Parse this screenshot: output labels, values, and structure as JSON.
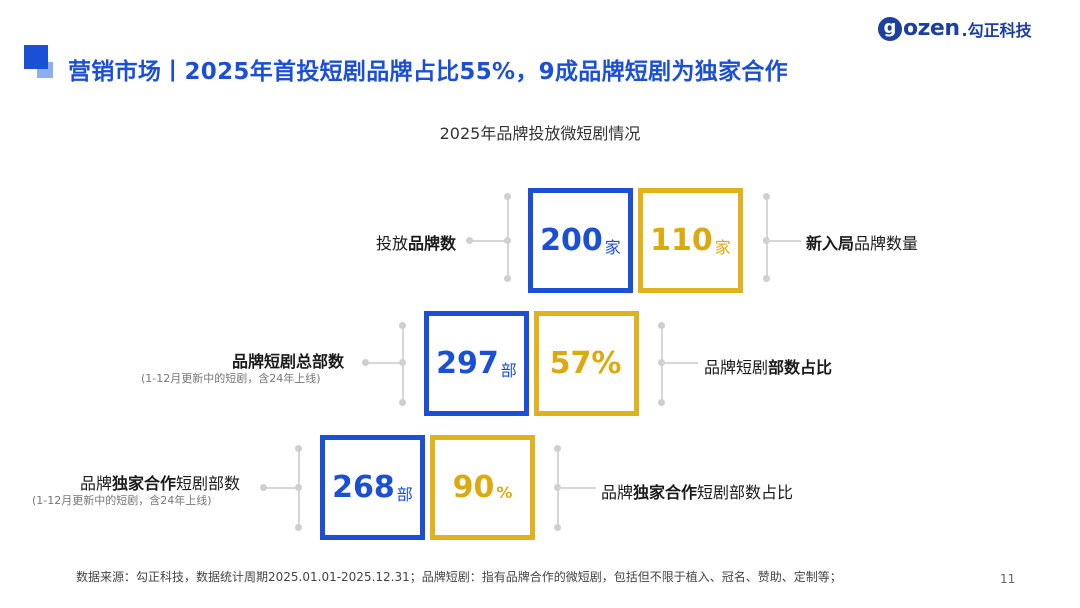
{
  "header": {
    "title": "营销市场丨2025年首投短剧品牌占比55%，9成品牌短剧为独家合作",
    "logo_text": "ozen",
    "logo_g": "g",
    "logo_cn": ".勾正科技"
  },
  "subtitle": "2025年品牌投放微短剧情况",
  "rows": [
    {
      "left_label_plain_before": "投放",
      "left_label_bold": "品牌数",
      "left_label_plain_after": "",
      "note": "",
      "blue_value": "200",
      "blue_unit": "家",
      "gold_value": "110",
      "gold_unit": "家",
      "right_label_bold_before": "新入局",
      "right_label_plain": "品牌数量",
      "right_label_bold_after": ""
    },
    {
      "left_label_plain_before": "",
      "left_label_bold": "品牌短剧总部数",
      "left_label_plain_after": "",
      "note": "(1-12月更新中的短剧，含24年上线)",
      "blue_value": "297",
      "blue_unit": "部",
      "gold_value": "57%",
      "gold_unit": "",
      "right_label_bold_before": "",
      "right_label_plain": "品牌短剧",
      "right_label_bold_after": "部数占比"
    },
    {
      "left_label_plain_before": "品牌",
      "left_label_bold": "独家合作",
      "left_label_plain_after": "短剧部数",
      "note": "(1-12月更新中的短剧，含24年上线)",
      "blue_value": "268",
      "blue_unit": "部",
      "gold_value": "90",
      "gold_unit": "%",
      "right_label_bold_before": "品牌",
      "right_label_plain": "独家合作",
      "right_label_bold_after": "短剧部数占比"
    }
  ],
  "footer": "数据来源：勾正科技，数据统计周期2025.01.01-2025.12.31；品牌短剧：指有品牌合作的微短剧，包括但不限于植入、冠名、赞助、定制等；",
  "page_number": "11",
  "colors": {
    "blue": "#1b4fd6",
    "gold": "#e0b21c",
    "line": "#d6d6d6"
  }
}
